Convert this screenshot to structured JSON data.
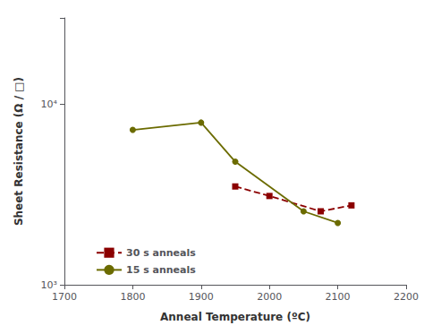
{
  "chart_data": {
    "type": "line",
    "log": "y",
    "grid": false,
    "legend": "lower left",
    "xlabel": "Anneal Temperature (ºC)",
    "ylabel": "Sheet Resistance (Ω / □)",
    "xlim": [
      1700,
      2200
    ],
    "xticks": [
      1700,
      1800,
      1900,
      2000,
      2100,
      2200
    ],
    "ylim": [
      1000,
      30000
    ],
    "yticks": [
      {
        "value": 1000,
        "label": "10³"
      },
      {
        "value": 10000,
        "label": "10⁴"
      }
    ],
    "series": [
      {
        "name": "30 s anneals",
        "color": "#8b0000",
        "marker": "square",
        "line_style": "dashed",
        "x": [
          1950,
          2000,
          2075,
          2120
        ],
        "values": [
          3500,
          3100,
          2550,
          2750
        ]
      },
      {
        "name": "15 s anneals",
        "color": "#6b6b00",
        "marker": "circle",
        "line_style": "solid",
        "x": [
          1800,
          1900,
          1950,
          2050,
          2100
        ],
        "values": [
          7200,
          7900,
          4800,
          2550,
          2200
        ]
      }
    ]
  }
}
